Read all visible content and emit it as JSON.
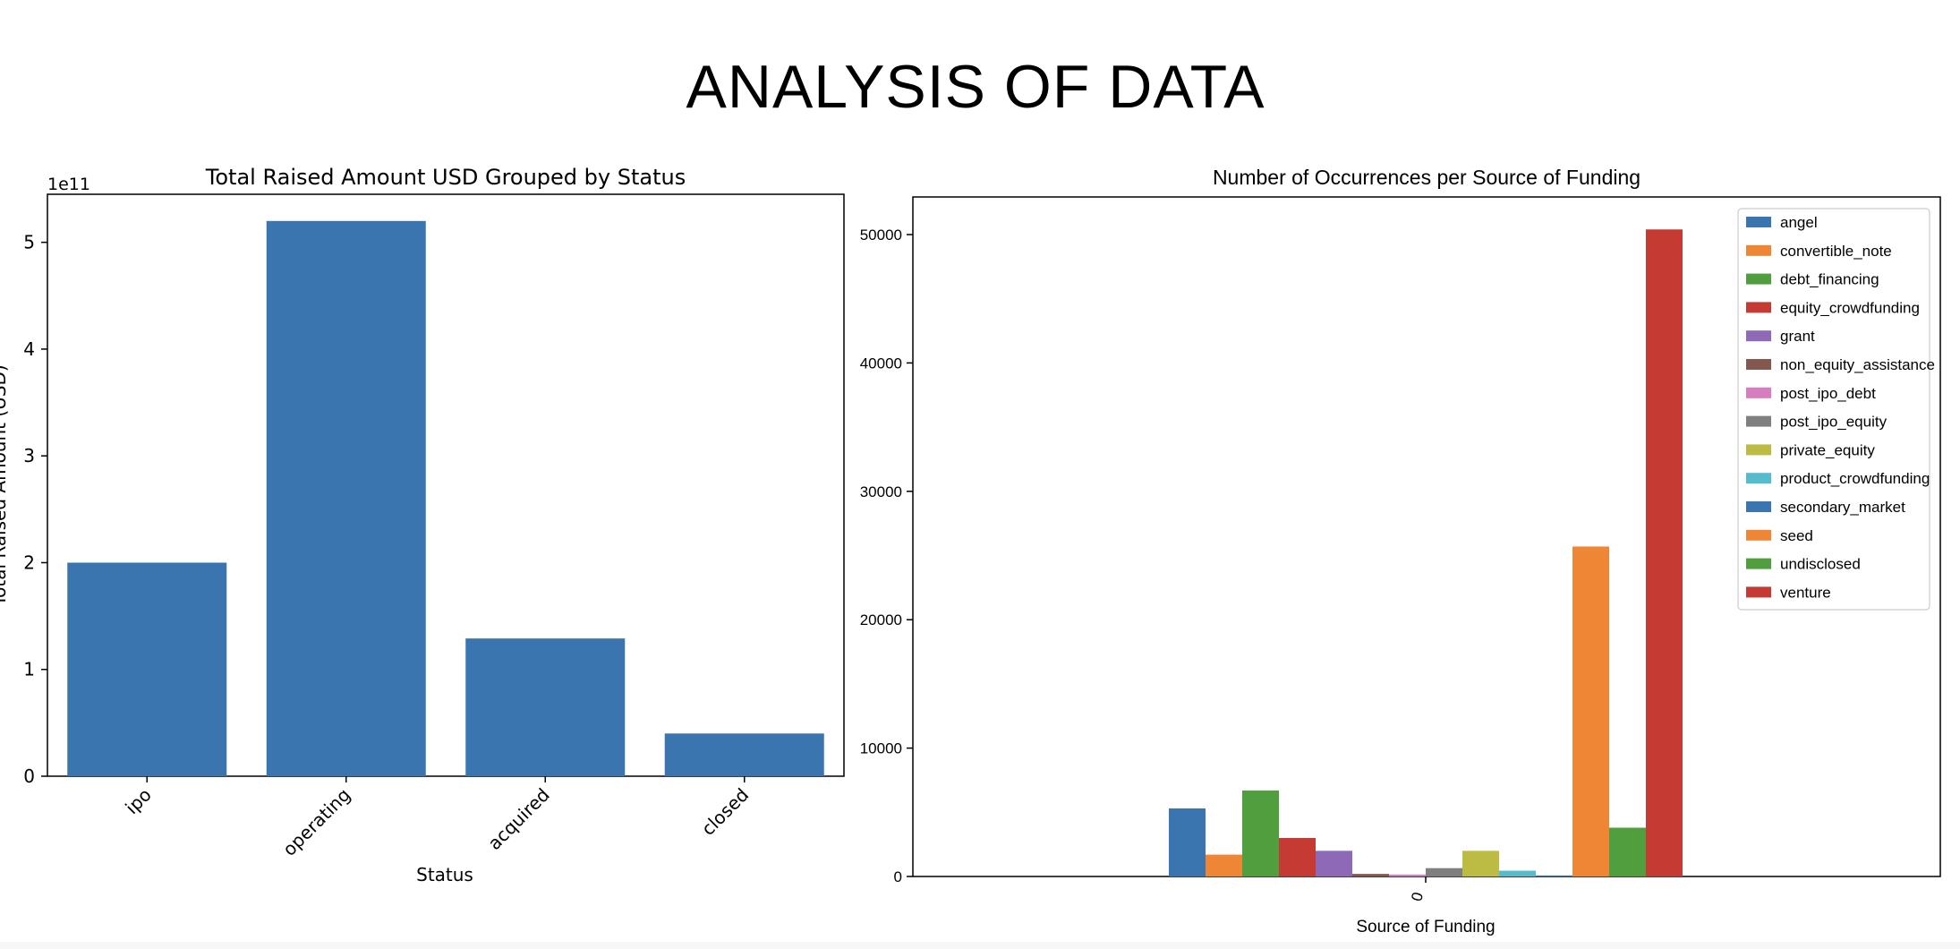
{
  "slide": {
    "title": "ANALYSIS OF DATA"
  },
  "chart_data": [
    {
      "type": "bar",
      "title": "Total Raised Amount USD Grouped by Status",
      "xlabel": "Status",
      "ylabel": "Total Raised Amount (USD)",
      "offset_text": "1e11",
      "categories": [
        "ipo",
        "operating",
        "acquired",
        "closed"
      ],
      "values": [
        200000000000.0,
        520000000000.0,
        129000000000.0,
        40000000000.0
      ],
      "ylim": [
        0,
        545000000000.0
      ],
      "yticks": [
        0,
        100000000000.0,
        200000000000.0,
        300000000000.0,
        400000000000.0,
        500000000000.0
      ],
      "ytick_labels": [
        "0",
        "1",
        "2",
        "3",
        "4",
        "5"
      ],
      "color": "#3a75af",
      "grid": false
    },
    {
      "type": "bar",
      "title": "Number of Occurrences per Source of Funding",
      "xlabel": "Source of Funding",
      "ylabel": "",
      "categories": [
        "0"
      ],
      "series": [
        {
          "name": "angel",
          "values": [
            5300
          ],
          "color": "#3a75af"
        },
        {
          "name": "convertible_note",
          "values": [
            1700
          ],
          "color": "#ef8636"
        },
        {
          "name": "debt_financing",
          "values": [
            6700
          ],
          "color": "#519e3e"
        },
        {
          "name": "equity_crowdfunding",
          "values": [
            3000
          ],
          "color": "#c53a32"
        },
        {
          "name": "grant",
          "values": [
            2000
          ],
          "color": "#8d69b8"
        },
        {
          "name": "non_equity_assistance",
          "values": [
            200
          ],
          "color": "#84584e"
        },
        {
          "name": "post_ipo_debt",
          "values": [
            150
          ],
          "color": "#d57dbe"
        },
        {
          "name": "post_ipo_equity",
          "values": [
            650
          ],
          "color": "#7f7f7f"
        },
        {
          "name": "private_equity",
          "values": [
            2000
          ],
          "color": "#bcbc45"
        },
        {
          "name": "product_crowdfunding",
          "values": [
            450
          ],
          "color": "#56bbcc"
        },
        {
          "name": "secondary_market",
          "values": [
            80
          ],
          "color": "#3a75af"
        },
        {
          "name": "seed",
          "values": [
            25700
          ],
          "color": "#ef8636"
        },
        {
          "name": "undisclosed",
          "values": [
            3800
          ],
          "color": "#519e3e"
        },
        {
          "name": "venture",
          "values": [
            50400
          ],
          "color": "#c53a32"
        }
      ],
      "ylim": [
        0,
        50000
      ],
      "yticks": [
        0,
        10000,
        20000,
        30000,
        40000,
        50000
      ],
      "ytick_labels": [
        "0",
        "10000",
        "20000",
        "30000",
        "40000",
        "50000"
      ],
      "legend": "top-right",
      "grid": false
    }
  ]
}
